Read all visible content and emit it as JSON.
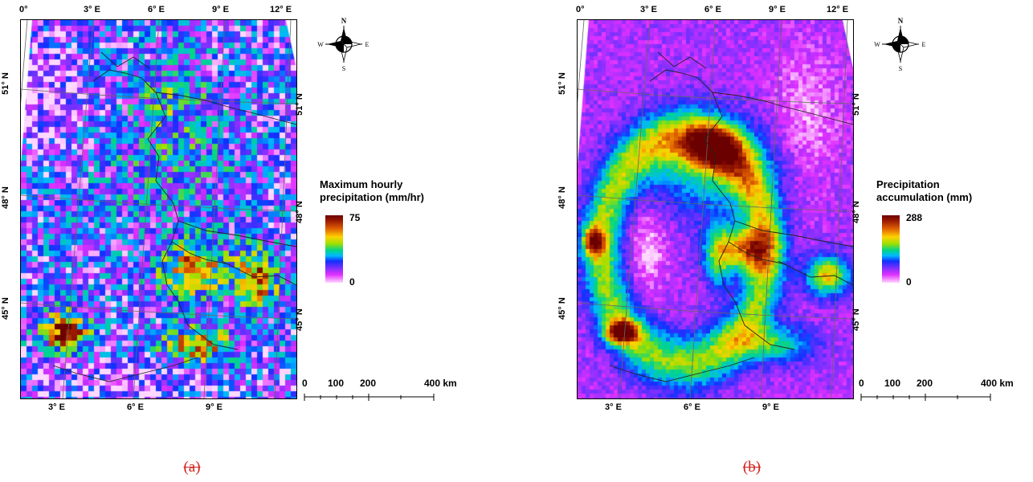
{
  "colors": {
    "ramp": [
      "#ffd8ff",
      "#e030ff",
      "#7a30ff",
      "#1030ff",
      "#00b8ff",
      "#00d58a",
      "#9ee000",
      "#ffd200",
      "#e06000",
      "#9a1a00",
      "#6b0000"
    ],
    "caption": "#d0221b"
  },
  "maps": [
    {
      "id": "a",
      "top_ticks": [
        "0°",
        "3° E",
        "6° E",
        "9° E",
        "12° E"
      ],
      "bottom_ticks": [
        "3° E",
        "6° E",
        "9° E"
      ],
      "left_ticks": [
        "51° N",
        "48° N",
        "45° N"
      ],
      "right_ticks": [
        "51° N",
        "48° N",
        "45° N"
      ],
      "compass": {
        "n": "N",
        "s": "S",
        "e": "E",
        "w": "W"
      },
      "legend": {
        "title_line1": "Maximum hourly",
        "title_line2": "precipitation (mm/hr)",
        "max": "75",
        "min": "0"
      },
      "scale": {
        "labels": [
          "0",
          "100",
          "200",
          "400 km"
        ]
      },
      "caption": "(a)"
    },
    {
      "id": "b",
      "top_ticks": [
        "0°",
        "3° E",
        "6° E",
        "9° E",
        "12° E"
      ],
      "bottom_ticks": [
        "3° E",
        "6° E",
        "9° E"
      ],
      "left_ticks": [
        "51° N",
        "48° N",
        "45° N"
      ],
      "right_ticks": [
        "51° N",
        "48° N",
        "45° N"
      ],
      "compass": {
        "n": "N",
        "s": "S",
        "e": "E",
        "w": "W"
      },
      "legend": {
        "title_line1": "Precipitation",
        "title_line2": "accumulation (mm)",
        "max": "288",
        "min": "0"
      },
      "scale": {
        "labels": [
          "0",
          "100",
          "200",
          "400 km"
        ]
      },
      "caption": "(b)"
    }
  ]
}
